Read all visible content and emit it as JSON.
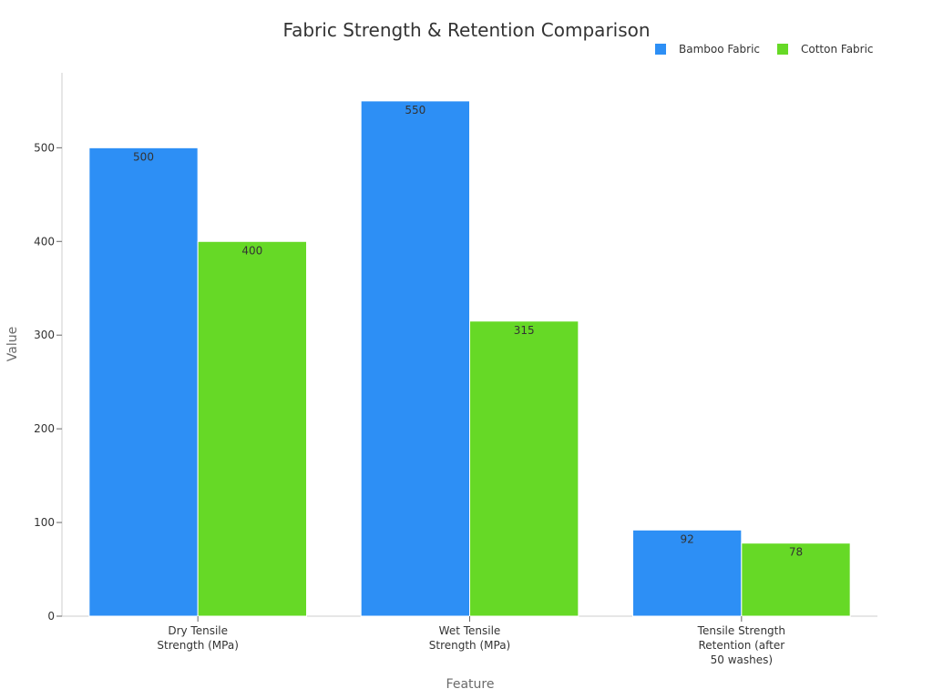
{
  "chart_data": {
    "type": "bar",
    "title": "Fabric Strength & Retention Comparison",
    "xlabel": "Feature",
    "ylabel": "Value",
    "categories": [
      [
        "Dry Tensile",
        "Strength (MPa)"
      ],
      [
        "Wet Tensile",
        "Strength (MPa)"
      ],
      [
        "Tensile Strength",
        "Retention (after",
        "50 washes)"
      ]
    ],
    "series": [
      {
        "name": "Bamboo Fabric",
        "color": "#2d8ff5",
        "values": [
          500,
          550,
          92
        ]
      },
      {
        "name": "Cotton Fabric",
        "color": "#66d926",
        "values": [
          400,
          315,
          78
        ]
      }
    ],
    "ylim": [
      0,
      580
    ],
    "yticks": [
      0,
      100,
      200,
      300,
      400,
      500
    ],
    "grid": false,
    "legend_position": "top-right"
  }
}
